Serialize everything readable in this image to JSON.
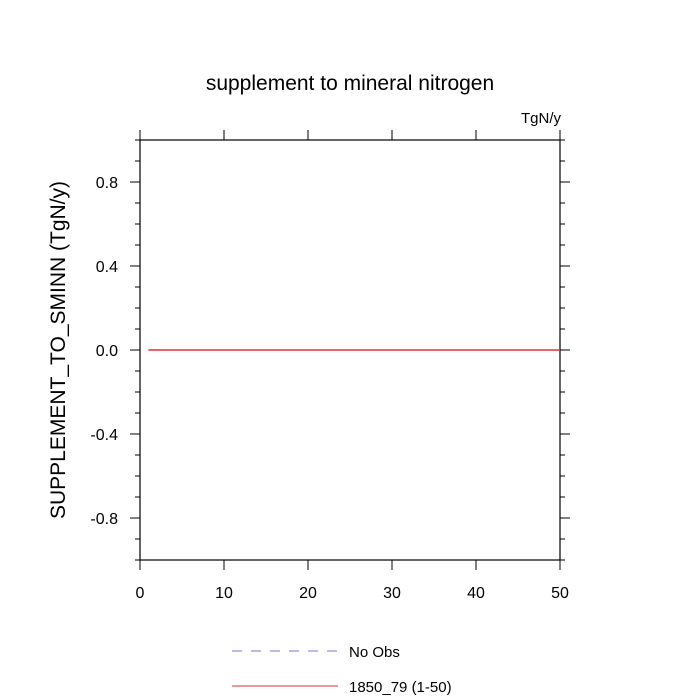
{
  "chart_data": {
    "type": "line",
    "title": "supplement to mineral nitrogen",
    "units_label": "TgN/y",
    "xlabel": "",
    "ylabel": "SUPPLEMENT_TO_SMINN  (TgN/y)",
    "xlim": [
      0,
      50
    ],
    "ylim": [
      -1.0,
      1.0
    ],
    "x_ticks": [
      0,
      10,
      20,
      30,
      40,
      50
    ],
    "x_tick_labels": [
      "0",
      "10",
      "20",
      "30",
      "40",
      "50"
    ],
    "y_ticks": [
      -0.8,
      -0.4,
      0.0,
      0.4,
      0.8
    ],
    "y_tick_labels": [
      "-0.8",
      "-0.4",
      "0.0",
      "0.4",
      "0.8"
    ],
    "grid": false,
    "legend_position": "bottom",
    "series": [
      {
        "name": "No Obs",
        "color": "#7777dd",
        "dash": "dashed",
        "x": [],
        "values": []
      },
      {
        "name": "1850_79 (1-50)",
        "color": "#dd3333",
        "dash": "solid",
        "x": [
          1,
          50
        ],
        "values": [
          0.0,
          0.0
        ]
      }
    ]
  }
}
